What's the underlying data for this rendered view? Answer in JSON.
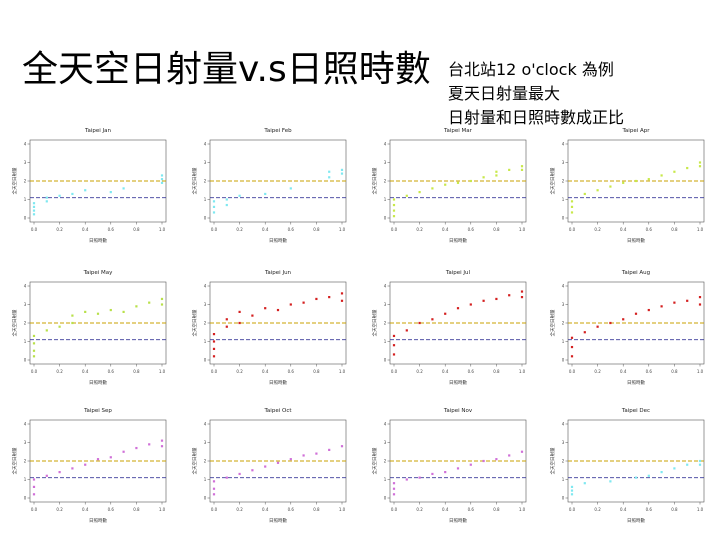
{
  "slide": {
    "title": "全天空日射量v.s日照時數",
    "notes": [
      "台北站12 o'clock 為例",
      "夏天日射量最大",
      "日射量和日照時數成正比"
    ]
  },
  "chart_data": [
    {
      "type": "scatter",
      "title": "Taipei Jan",
      "xlabel": "日照時數",
      "ylabel": "全天空日射量",
      "color": "#7fe8f0",
      "xticks": [
        "0.0",
        "0.2",
        "0.4",
        "0.6",
        "0.8",
        "1.0"
      ],
      "yticks": [
        "0",
        "1",
        "2",
        "3",
        "4"
      ],
      "xlim": [
        0,
        1
      ],
      "ylim": [
        0,
        4
      ],
      "ref_lines": [
        2.0,
        1.1
      ],
      "points": [
        [
          0,
          0.2
        ],
        [
          0,
          0.4
        ],
        [
          0,
          0.6
        ],
        [
          0,
          0.8
        ],
        [
          0.1,
          0.9
        ],
        [
          0.1,
          1.1
        ],
        [
          0.2,
          1.2
        ],
        [
          0.3,
          1.3
        ],
        [
          0.4,
          1.5
        ],
        [
          0.6,
          1.4
        ],
        [
          0.7,
          1.6
        ],
        [
          1.0,
          1.9
        ],
        [
          1.0,
          2.1
        ],
        [
          1.0,
          2.3
        ]
      ]
    },
    {
      "type": "scatter",
      "title": "Taipei Feb",
      "xlabel": "日照時數",
      "ylabel": "全天空日射量",
      "color": "#7fe8f0",
      "xticks": [
        "0.0",
        "0.2",
        "0.4",
        "0.6",
        "0.8",
        "1.0"
      ],
      "yticks": [
        "0",
        "1",
        "2",
        "3",
        "4"
      ],
      "xlim": [
        0,
        1
      ],
      "ylim": [
        0,
        4
      ],
      "ref_lines": [
        2.0,
        1.1
      ],
      "points": [
        [
          0,
          0.3
        ],
        [
          0,
          0.6
        ],
        [
          0,
          0.9
        ],
        [
          0.1,
          0.7
        ],
        [
          0.1,
          1.0
        ],
        [
          0.2,
          1.2
        ],
        [
          0.4,
          1.3
        ],
        [
          0.6,
          1.6
        ],
        [
          0.9,
          2.2
        ],
        [
          0.9,
          2.5
        ],
        [
          1.0,
          2.4
        ],
        [
          1.0,
          2.6
        ]
      ]
    },
    {
      "type": "scatter",
      "title": "Taipei Mar",
      "xlabel": "日照時數",
      "ylabel": "全天空日射量",
      "color": "#c8e84a",
      "xticks": [
        "0.0",
        "0.2",
        "0.4",
        "0.6",
        "0.8",
        "1.0"
      ],
      "yticks": [
        "0",
        "1",
        "2",
        "3",
        "4"
      ],
      "xlim": [
        0,
        1
      ],
      "ylim": [
        0,
        4
      ],
      "ref_lines": [
        2.0,
        1.1
      ],
      "points": [
        [
          0,
          0.1
        ],
        [
          0,
          0.4
        ],
        [
          0,
          0.7
        ],
        [
          0,
          1.0
        ],
        [
          0.1,
          1.2
        ],
        [
          0.2,
          1.4
        ],
        [
          0.3,
          1.6
        ],
        [
          0.4,
          1.8
        ],
        [
          0.5,
          1.9
        ],
        [
          0.6,
          2.0
        ],
        [
          0.7,
          2.2
        ],
        [
          0.8,
          2.3
        ],
        [
          0.8,
          2.5
        ],
        [
          0.9,
          2.6
        ],
        [
          1.0,
          2.8
        ],
        [
          1.0,
          2.6
        ]
      ]
    },
    {
      "type": "scatter",
      "title": "Taipei Apr",
      "xlabel": "日照時數",
      "ylabel": "全天空日射量",
      "color": "#c8e84a",
      "xticks": [
        "0.0",
        "0.2",
        "0.4",
        "0.6",
        "0.8",
        "1.0"
      ],
      "yticks": [
        "0",
        "1",
        "2",
        "3",
        "4"
      ],
      "xlim": [
        0,
        1
      ],
      "ylim": [
        0,
        4
      ],
      "ref_lines": [
        2.0,
        1.1
      ],
      "points": [
        [
          0,
          0.3
        ],
        [
          0,
          0.6
        ],
        [
          0,
          0.9
        ],
        [
          0.1,
          1.3
        ],
        [
          0.2,
          1.5
        ],
        [
          0.3,
          1.7
        ],
        [
          0.4,
          1.9
        ],
        [
          0.5,
          2.0
        ],
        [
          0.6,
          2.1
        ],
        [
          0.7,
          2.3
        ],
        [
          0.8,
          2.5
        ],
        [
          0.9,
          2.7
        ],
        [
          1.0,
          3.0
        ],
        [
          1.0,
          2.8
        ]
      ]
    },
    {
      "type": "scatter",
      "title": "Taipei May",
      "xlabel": "日照時數",
      "ylabel": "全天空日射量",
      "color": "#b8e04a",
      "xticks": [
        "0.0",
        "0.2",
        "0.4",
        "0.6",
        "0.8",
        "1.0"
      ],
      "yticks": [
        "0",
        "1",
        "2",
        "3",
        "4"
      ],
      "xlim": [
        0,
        1
      ],
      "ylim": [
        0,
        4
      ],
      "ref_lines": [
        2.0,
        1.1
      ],
      "points": [
        [
          0,
          0.2
        ],
        [
          0,
          0.5
        ],
        [
          0,
          0.9
        ],
        [
          0,
          1.3
        ],
        [
          0.1,
          1.6
        ],
        [
          0.2,
          1.8
        ],
        [
          0.3,
          2.0
        ],
        [
          0.3,
          2.4
        ],
        [
          0.4,
          2.6
        ],
        [
          0.5,
          2.5
        ],
        [
          0.6,
          2.7
        ],
        [
          0.7,
          2.6
        ],
        [
          0.8,
          2.9
        ],
        [
          0.9,
          3.1
        ],
        [
          1.0,
          3.3
        ],
        [
          1.0,
          3.0
        ]
      ]
    },
    {
      "type": "scatter",
      "title": "Taipei Jun",
      "xlabel": "日照時數",
      "ylabel": "全天空日射量",
      "color": "#d42020",
      "xticks": [
        "0.0",
        "0.2",
        "0.4",
        "0.6",
        "0.8",
        "1.0"
      ],
      "yticks": [
        "0",
        "1",
        "2",
        "3",
        "4"
      ],
      "xlim": [
        0,
        1
      ],
      "ylim": [
        0,
        4
      ],
      "ref_lines": [
        2.0,
        1.1
      ],
      "points": [
        [
          0,
          0.2
        ],
        [
          0,
          0.6
        ],
        [
          0,
          1.0
        ],
        [
          0,
          1.4
        ],
        [
          0.1,
          1.8
        ],
        [
          0.1,
          2.2
        ],
        [
          0.2,
          2.0
        ],
        [
          0.2,
          2.6
        ],
        [
          0.3,
          2.4
        ],
        [
          0.4,
          2.8
        ],
        [
          0.5,
          2.7
        ],
        [
          0.6,
          3.0
        ],
        [
          0.7,
          3.1
        ],
        [
          0.8,
          3.3
        ],
        [
          0.9,
          3.4
        ],
        [
          1.0,
          3.6
        ],
        [
          1.0,
          3.2
        ]
      ]
    },
    {
      "type": "scatter",
      "title": "Taipei Jul",
      "xlabel": "日照時數",
      "ylabel": "全天空日射量",
      "color": "#d42020",
      "xticks": [
        "0.0",
        "0.2",
        "0.4",
        "0.6",
        "0.8",
        "1.0"
      ],
      "yticks": [
        "0",
        "1",
        "2",
        "3",
        "4"
      ],
      "xlim": [
        0,
        1
      ],
      "ylim": [
        0,
        4
      ],
      "ref_lines": [
        2.0,
        1.1
      ],
      "points": [
        [
          0,
          0.3
        ],
        [
          0,
          0.8
        ],
        [
          0,
          1.3
        ],
        [
          0.1,
          1.6
        ],
        [
          0.2,
          2.0
        ],
        [
          0.3,
          2.2
        ],
        [
          0.4,
          2.5
        ],
        [
          0.5,
          2.8
        ],
        [
          0.6,
          3.0
        ],
        [
          0.7,
          3.2
        ],
        [
          0.8,
          3.3
        ],
        [
          0.9,
          3.5
        ],
        [
          1.0,
          3.7
        ],
        [
          1.0,
          3.4
        ]
      ]
    },
    {
      "type": "scatter",
      "title": "Taipei Aug",
      "xlabel": "日照時數",
      "ylabel": "全天空日射量",
      "color": "#d42020",
      "xticks": [
        "0.0",
        "0.2",
        "0.4",
        "0.6",
        "0.8",
        "1.0"
      ],
      "yticks": [
        "0",
        "1",
        "2",
        "3",
        "4"
      ],
      "xlim": [
        0,
        1
      ],
      "ylim": [
        0,
        4
      ],
      "ref_lines": [
        2.0,
        1.1
      ],
      "points": [
        [
          0,
          0.2
        ],
        [
          0,
          0.7
        ],
        [
          0,
          1.2
        ],
        [
          0.1,
          1.5
        ],
        [
          0.2,
          1.8
        ],
        [
          0.3,
          2.0
        ],
        [
          0.4,
          2.2
        ],
        [
          0.5,
          2.5
        ],
        [
          0.6,
          2.7
        ],
        [
          0.7,
          2.9
        ],
        [
          0.8,
          3.1
        ],
        [
          0.9,
          3.2
        ],
        [
          1.0,
          3.4
        ],
        [
          1.0,
          3.0
        ]
      ]
    },
    {
      "type": "scatter",
      "title": "Taipei Sep",
      "xlabel": "日照時數",
      "ylabel": "全天空日射量",
      "color": "#d070d8",
      "xticks": [
        "0.0",
        "0.2",
        "0.4",
        "0.6",
        "0.8",
        "1.0"
      ],
      "yticks": [
        "0",
        "1",
        "2",
        "3",
        "4"
      ],
      "xlim": [
        0,
        1
      ],
      "ylim": [
        0,
        4
      ],
      "ref_lines": [
        2.0,
        1.1
      ],
      "points": [
        [
          0,
          0.2
        ],
        [
          0,
          0.6
        ],
        [
          0,
          1.0
        ],
        [
          0.1,
          1.2
        ],
        [
          0.2,
          1.4
        ],
        [
          0.3,
          1.6
        ],
        [
          0.4,
          1.8
        ],
        [
          0.5,
          2.1
        ],
        [
          0.6,
          2.2
        ],
        [
          0.7,
          2.5
        ],
        [
          0.8,
          2.7
        ],
        [
          0.9,
          2.9
        ],
        [
          1.0,
          3.1
        ],
        [
          1.0,
          2.8
        ]
      ]
    },
    {
      "type": "scatter",
      "title": "Taipei Oct",
      "xlabel": "日照時數",
      "ylabel": "全天空日射量",
      "color": "#d070d8",
      "xticks": [
        "0.0",
        "0.2",
        "0.4",
        "0.6",
        "0.8",
        "1.0"
      ],
      "yticks": [
        "0",
        "1",
        "2",
        "3",
        "4"
      ],
      "xlim": [
        0,
        1
      ],
      "ylim": [
        0,
        4
      ],
      "ref_lines": [
        2.0,
        1.1
      ],
      "points": [
        [
          0,
          0.2
        ],
        [
          0,
          0.5
        ],
        [
          0,
          0.9
        ],
        [
          0.1,
          1.1
        ],
        [
          0.2,
          1.3
        ],
        [
          0.3,
          1.5
        ],
        [
          0.4,
          1.7
        ],
        [
          0.5,
          1.9
        ],
        [
          0.6,
          2.1
        ],
        [
          0.7,
          2.3
        ],
        [
          0.8,
          2.4
        ],
        [
          0.9,
          2.6
        ],
        [
          1.0,
          2.8
        ]
      ]
    },
    {
      "type": "scatter",
      "title": "Taipei Nov",
      "xlabel": "日照時數",
      "ylabel": "全天空日射量",
      "color": "#d070d8",
      "xticks": [
        "0.0",
        "0.2",
        "0.4",
        "0.6",
        "0.8",
        "1.0"
      ],
      "yticks": [
        "0",
        "1",
        "2",
        "3",
        "4"
      ],
      "xlim": [
        0,
        1
      ],
      "ylim": [
        0,
        4
      ],
      "ref_lines": [
        2.0,
        1.1
      ],
      "points": [
        [
          0,
          0.2
        ],
        [
          0,
          0.5
        ],
        [
          0,
          0.8
        ],
        [
          0.1,
          1.0
        ],
        [
          0.2,
          1.1
        ],
        [
          0.3,
          1.3
        ],
        [
          0.4,
          1.4
        ],
        [
          0.5,
          1.6
        ],
        [
          0.6,
          1.8
        ],
        [
          0.7,
          2.0
        ],
        [
          0.8,
          2.1
        ],
        [
          0.9,
          2.3
        ],
        [
          1.0,
          2.5
        ]
      ]
    },
    {
      "type": "scatter",
      "title": "Taipei Dec",
      "xlabel": "日照時數",
      "ylabel": "全天空日射量",
      "color": "#7fe8f0",
      "xticks": [
        "0.0",
        "0.2",
        "0.4",
        "0.6",
        "0.8",
        "1.0"
      ],
      "yticks": [
        "0",
        "1",
        "2",
        "3",
        "4"
      ],
      "xlim": [
        0,
        1
      ],
      "ylim": [
        0,
        4
      ],
      "ref_lines": [
        2.0,
        1.1
      ],
      "points": [
        [
          0,
          0.2
        ],
        [
          0,
          0.4
        ],
        [
          0,
          0.6
        ],
        [
          0.1,
          0.8
        ],
        [
          0.3,
          0.9
        ],
        [
          0.5,
          1.1
        ],
        [
          0.6,
          1.2
        ],
        [
          0.7,
          1.4
        ],
        [
          0.8,
          1.6
        ],
        [
          0.9,
          1.8
        ],
        [
          1.0,
          2.0
        ],
        [
          1.0,
          1.8
        ]
      ]
    }
  ]
}
